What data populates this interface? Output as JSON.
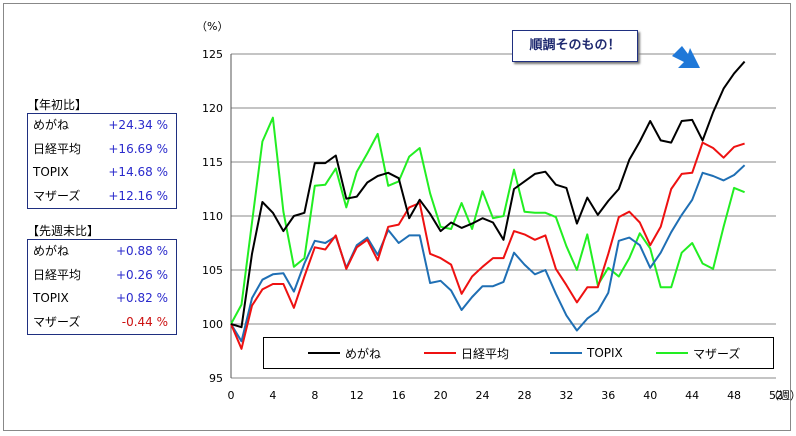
{
  "annotation": "順調そのもの！",
  "ytick_unit": "（%）",
  "xtick_unit": "（週）",
  "ytd_table": {
    "title": "【年初比】",
    "rows": [
      {
        "name": "めがね",
        "value": "+24.34 %"
      },
      {
        "name": "日経平均",
        "value": "+16.69 %"
      },
      {
        "name": "TOPIX",
        "value": "+14.68 %"
      },
      {
        "name": "マザーズ",
        "value": "+12.16 %"
      }
    ]
  },
  "week_table": {
    "title": "【先週末比】",
    "rows": [
      {
        "name": "めがね",
        "value": "+0.88 %"
      },
      {
        "name": "日経平均",
        "value": "+0.26 %"
      },
      {
        "name": "TOPIX",
        "value": "+0.82 %"
      },
      {
        "name": "マザーズ",
        "value": "-0.44 %"
      }
    ]
  },
  "colors": {
    "megane": "#000000",
    "nikkei": "#ee1111",
    "topix": "#1f6fb4",
    "mothers": "#22ee22",
    "positive": "#2a2acc",
    "negative": "#cc1111",
    "arrow": "#1f78d8"
  },
  "chart_data": {
    "type": "line",
    "xlim": [
      0,
      52
    ],
    "ylim": [
      95,
      125
    ],
    "xticks": [
      0,
      4,
      8,
      12,
      16,
      20,
      24,
      28,
      32,
      36,
      40,
      44,
      48,
      52
    ],
    "yticks": [
      95,
      100,
      105,
      110,
      115,
      120,
      125
    ],
    "grid": true,
    "legend_position": "bottom",
    "x": [
      0,
      1,
      2,
      3,
      4,
      5,
      6,
      7,
      8,
      9,
      10,
      11,
      12,
      13,
      14,
      15,
      16,
      17,
      18,
      19,
      20,
      21,
      22,
      23,
      24,
      25,
      26,
      27,
      28,
      29,
      30,
      31,
      32,
      33,
      34,
      35,
      36,
      37,
      38,
      39,
      40,
      41,
      42,
      43,
      44,
      45,
      46,
      47,
      48,
      49
    ],
    "series": [
      {
        "name": "めがね",
        "values": [
          100,
          99.7,
          106.5,
          111.3,
          110.3,
          108.6,
          110.0,
          110.3,
          114.9,
          114.9,
          115.6,
          111.6,
          111.8,
          113.1,
          113.7,
          114.0,
          113.5,
          109.8,
          111.5,
          110.2,
          108.6,
          109.4,
          108.9,
          109.3,
          109.8,
          109.4,
          107.8,
          112.5,
          113.2,
          113.9,
          114.1,
          112.9,
          112.6,
          109.3,
          111.7,
          110.1,
          111.4,
          112.5,
          115.2,
          116.9,
          118.8,
          117.0,
          116.8,
          118.8,
          118.9,
          117.0,
          119.6,
          121.8,
          123.2,
          124.3
        ]
      },
      {
        "name": "日経平均",
        "values": [
          100,
          97.7,
          101.7,
          103.2,
          103.7,
          103.7,
          101.5,
          104.4,
          107.1,
          106.9,
          108.2,
          105.1,
          107.1,
          107.8,
          105.9,
          109.0,
          109.2,
          110.8,
          111.2,
          106.5,
          106.1,
          105.5,
          102.8,
          104.4,
          105.3,
          106.1,
          106.1,
          108.6,
          108.3,
          107.8,
          108.2,
          105.1,
          103.6,
          102.0,
          103.4,
          103.4,
          106.5,
          109.9,
          110.4,
          109.4,
          107.3,
          109.0,
          112.5,
          113.9,
          114.0,
          116.8,
          116.3,
          115.4,
          116.4,
          116.7
        ]
      },
      {
        "name": "TOPIX",
        "values": [
          100,
          98.4,
          102.4,
          104.1,
          104.6,
          104.7,
          103.0,
          105.6,
          107.7,
          107.5,
          108.1,
          105.2,
          107.3,
          108.0,
          106.4,
          108.7,
          107.5,
          108.2,
          108.2,
          103.8,
          104.0,
          103.1,
          101.3,
          102.5,
          103.5,
          103.5,
          103.9,
          106.6,
          105.5,
          104.6,
          105.0,
          102.8,
          100.8,
          99.4,
          100.5,
          101.2,
          102.9,
          107.7,
          108.0,
          107.3,
          105.2,
          106.6,
          108.5,
          110.1,
          111.5,
          114.0,
          113.7,
          113.3,
          113.8,
          114.7
        ]
      },
      {
        "name": "マザーズ",
        "values": [
          100,
          101.8,
          109.4,
          116.9,
          119.1,
          110.4,
          105.3,
          106.1,
          112.8,
          112.9,
          114.4,
          110.8,
          114.1,
          115.8,
          117.6,
          112.8,
          113.2,
          115.5,
          116.3,
          112.1,
          109.0,
          108.8,
          111.2,
          108.8,
          112.3,
          109.8,
          110.0,
          114.3,
          110.4,
          110.3,
          110.3,
          109.9,
          107.2,
          105.0,
          108.3,
          103.6,
          105.2,
          104.4,
          106.1,
          108.4,
          107.0,
          103.4,
          103.4,
          106.6,
          107.5,
          105.6,
          105.1,
          109.0,
          112.6,
          112.2
        ]
      }
    ]
  }
}
